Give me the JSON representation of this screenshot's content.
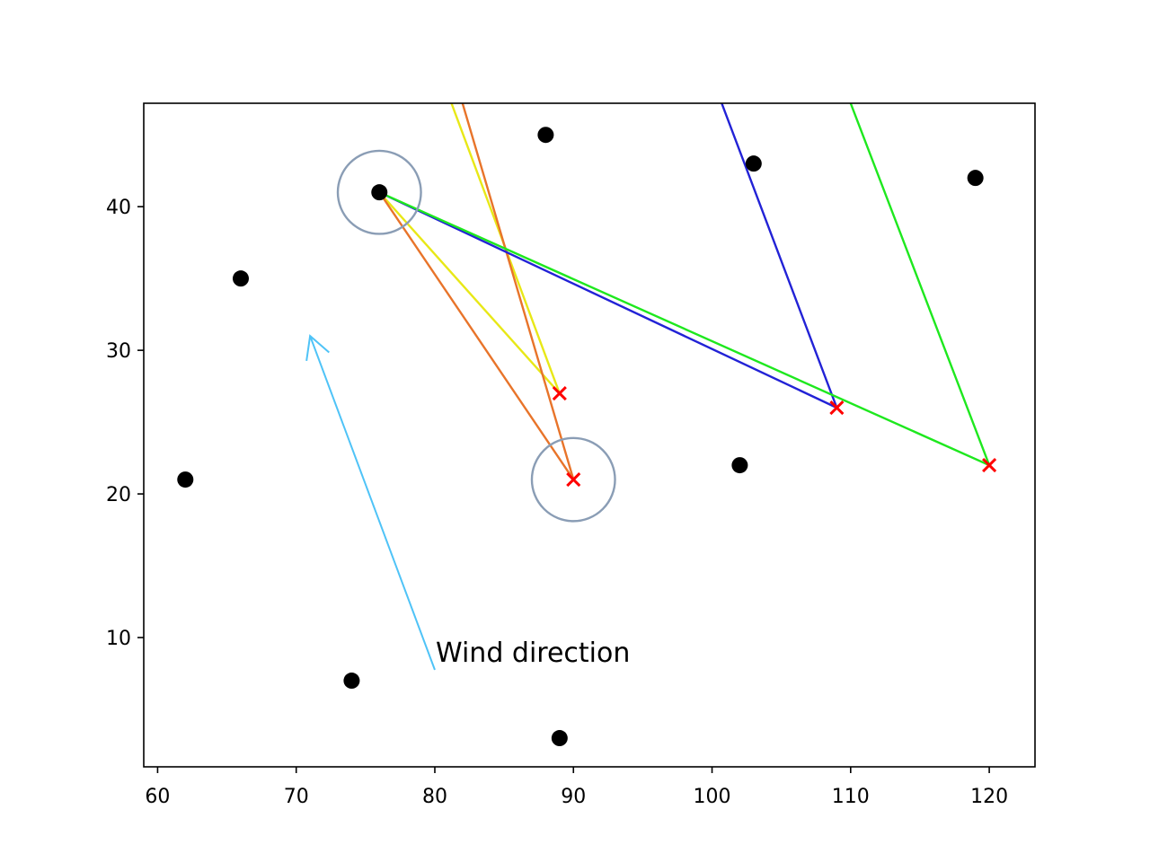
{
  "chart_data": {
    "type": "scatter",
    "title": "",
    "xlabel": "",
    "ylabel": "",
    "xlim": [
      59,
      123.3
    ],
    "ylim": [
      1,
      47.2
    ],
    "x_ticks": [
      60,
      70,
      80,
      90,
      100,
      110,
      120
    ],
    "y_ticks": [
      10,
      20,
      30,
      40
    ],
    "grid": false,
    "points": [
      {
        "x": 62,
        "y": 21
      },
      {
        "x": 66,
        "y": 35
      },
      {
        "x": 74,
        "y": 7
      },
      {
        "x": 76,
        "y": 41
      },
      {
        "x": 88,
        "y": 45
      },
      {
        "x": 89,
        "y": 3
      },
      {
        "x": 102,
        "y": 22
      },
      {
        "x": 103,
        "y": 43
      },
      {
        "x": 119,
        "y": 42
      }
    ],
    "cross_markers": [
      {
        "x": 89,
        "y": 27
      },
      {
        "x": 90,
        "y": 21
      },
      {
        "x": 109,
        "y": 26
      },
      {
        "x": 120,
        "y": 22
      }
    ],
    "circles": [
      {
        "x": 76,
        "y": 41,
        "r_x": 3
      },
      {
        "x": 90,
        "y": 21,
        "r_x": 3
      }
    ],
    "paths": [
      {
        "color": "#e8e817",
        "points": [
          [
            81.2,
            47.2
          ],
          [
            89,
            27
          ],
          [
            76,
            41
          ]
        ]
      },
      {
        "color": "#e8742a",
        "points": [
          [
            82,
            47.2
          ],
          [
            90,
            21
          ],
          [
            76,
            41
          ]
        ]
      },
      {
        "color": "#2222d6",
        "points": [
          [
            100.7,
            47.2
          ],
          [
            109,
            26
          ],
          [
            76,
            41
          ]
        ]
      },
      {
        "color": "#1ee81e",
        "points": [
          [
            110,
            47.2
          ],
          [
            120,
            22
          ],
          [
            76,
            41
          ]
        ]
      }
    ],
    "annotation": {
      "text": "Wind direction",
      "x": 80,
      "y": 8.5,
      "arrow_to": {
        "x": 71,
        "y": 31
      },
      "color": "#4fc3f7"
    },
    "colors": {
      "point": "#000000",
      "cross": "#ff0000",
      "circle": "#8a9db5"
    }
  }
}
